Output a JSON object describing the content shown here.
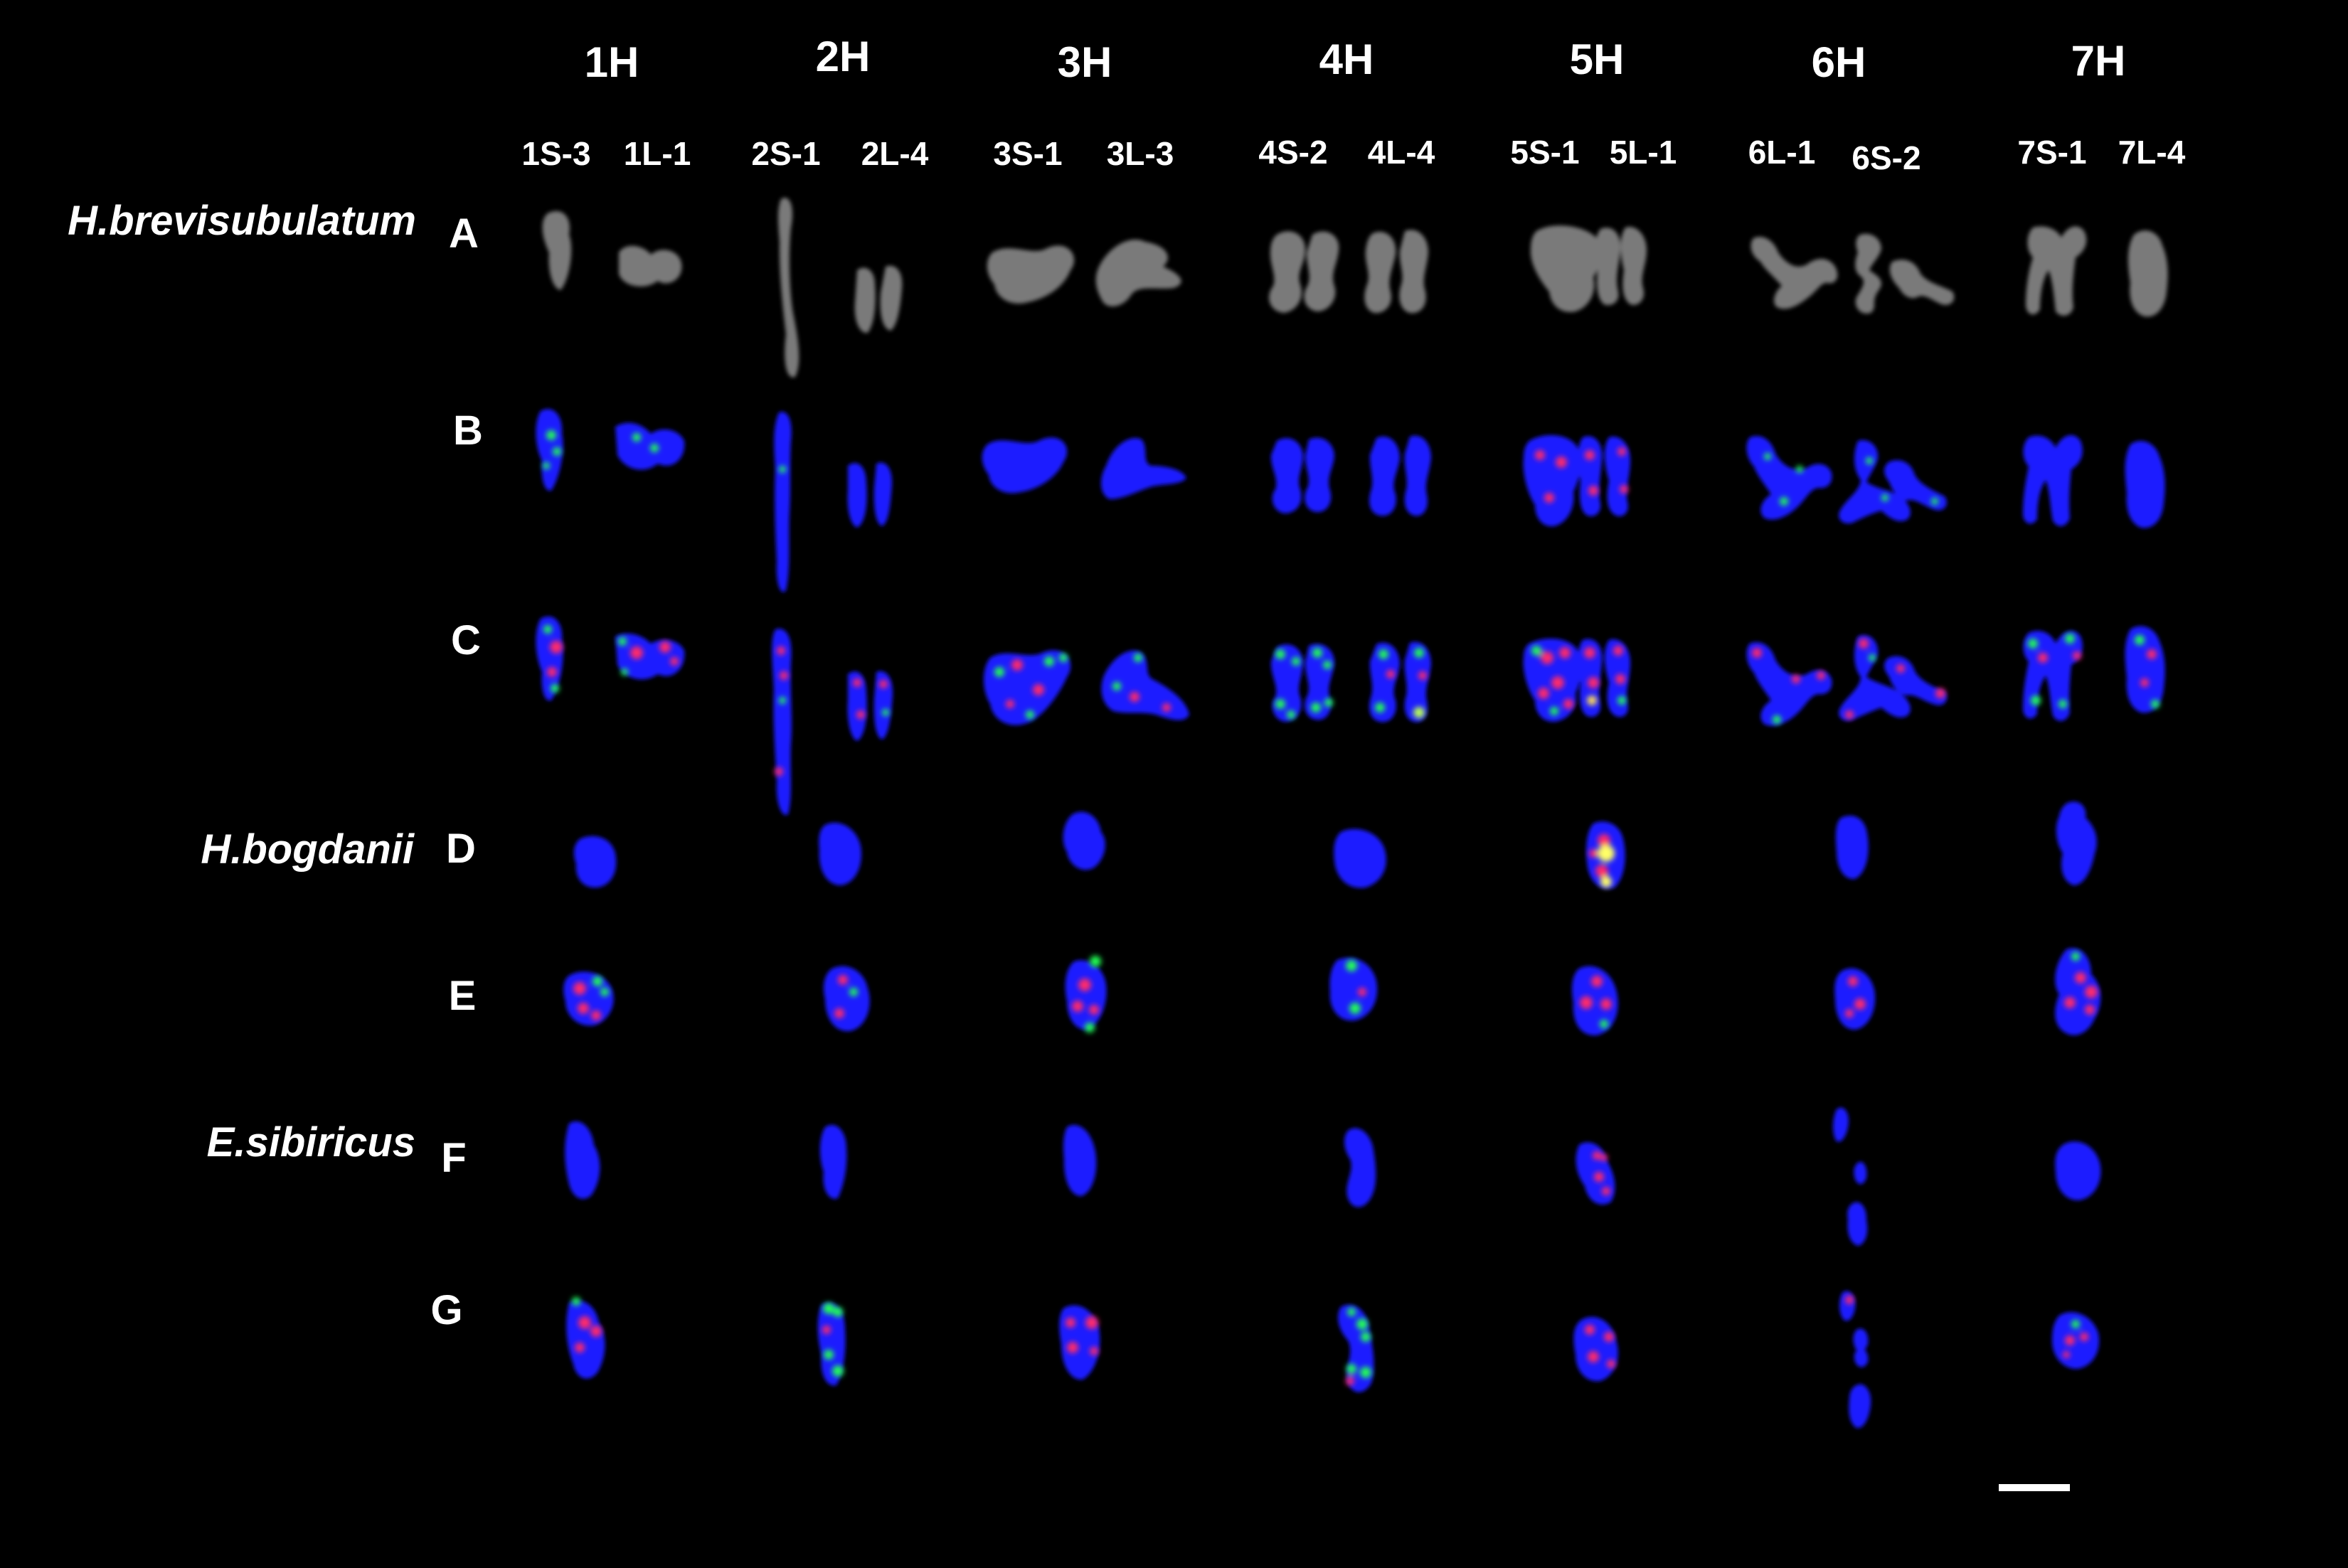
{
  "column_headers": [
    "1H",
    "2H",
    "3H",
    "4H",
    "5H",
    "6H",
    "7H"
  ],
  "sub_labels": [
    [
      "1S-3",
      "1L-1"
    ],
    [
      "2S-1",
      "2L-4"
    ],
    [
      "3S-1",
      "3L-3"
    ],
    [
      "4S-2",
      "4L-4"
    ],
    [
      "5S-1",
      "5L-1"
    ],
    [
      "6L-1",
      "6S-2"
    ],
    [
      "7S-1",
      "7L-4"
    ]
  ],
  "species": [
    "H.brevisubulatum",
    "H.bogdanii",
    "E.sibiricus"
  ],
  "row_labels": [
    "A",
    "B",
    "C",
    "D",
    "E",
    "F",
    "G"
  ],
  "colors": {
    "background": "#000000",
    "grey_chromosome": "#7a7a7a",
    "dapi_blue": "#1a1aff",
    "probe_red": "#ff2a6a",
    "probe_green": "#22ff55",
    "label_text": "#ffffff"
  },
  "scale_bar": {
    "label": ""
  }
}
